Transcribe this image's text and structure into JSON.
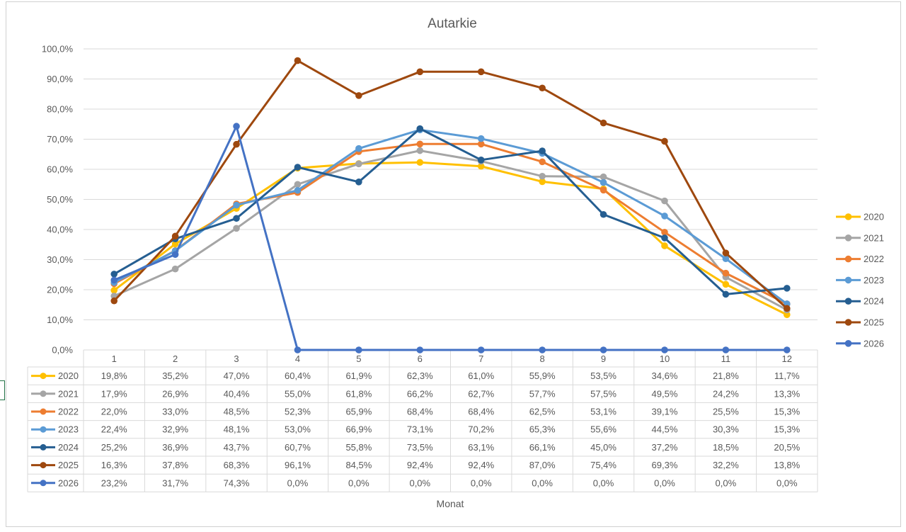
{
  "chart_data": {
    "type": "line",
    "title": "Autarkie",
    "xlabel": "Monat",
    "ylabel": "",
    "ylim": [
      0,
      100
    ],
    "y_ticks": [
      "0,0%",
      "10,0%",
      "20,0%",
      "30,0%",
      "40,0%",
      "50,0%",
      "60,0%",
      "70,0%",
      "80,0%",
      "90,0%",
      "100,0%"
    ],
    "categories": [
      "1",
      "2",
      "3",
      "4",
      "5",
      "6",
      "7",
      "8",
      "9",
      "10",
      "11",
      "12"
    ],
    "grid": true,
    "legend_position": "right",
    "data_table": true,
    "series": [
      {
        "name": "2020",
        "color": "#FFC000",
        "values": [
          19.8,
          35.2,
          47.0,
          60.4,
          61.9,
          62.3,
          61.0,
          55.9,
          53.5,
          34.6,
          21.8,
          11.7
        ],
        "labels": [
          "19,8%",
          "35,2%",
          "47,0%",
          "60,4%",
          "61,9%",
          "62,3%",
          "61,0%",
          "55,9%",
          "53,5%",
          "34,6%",
          "21,8%",
          "11,7%"
        ]
      },
      {
        "name": "2021",
        "color": "#A5A5A5",
        "values": [
          17.9,
          26.9,
          40.4,
          55.0,
          61.8,
          66.2,
          62.7,
          57.7,
          57.5,
          49.5,
          24.2,
          13.3
        ],
        "labels": [
          "17,9%",
          "26,9%",
          "40,4%",
          "55,0%",
          "61,8%",
          "66,2%",
          "62,7%",
          "57,7%",
          "57,5%",
          "49,5%",
          "24,2%",
          "13,3%"
        ]
      },
      {
        "name": "2022",
        "color": "#ED7D31",
        "values": [
          22.0,
          33.0,
          48.5,
          52.3,
          65.9,
          68.4,
          68.4,
          62.5,
          53.1,
          39.1,
          25.5,
          15.3
        ],
        "labels": [
          "22,0%",
          "33,0%",
          "48,5%",
          "52,3%",
          "65,9%",
          "68,4%",
          "68,4%",
          "62,5%",
          "53,1%",
          "39,1%",
          "25,5%",
          "15,3%"
        ]
      },
      {
        "name": "2023",
        "color": "#5B9BD5",
        "values": [
          22.4,
          32.9,
          48.1,
          53.0,
          66.9,
          73.1,
          70.2,
          65.3,
          55.6,
          44.5,
          30.3,
          15.3
        ],
        "labels": [
          "22,4%",
          "32,9%",
          "48,1%",
          "53,0%",
          "66,9%",
          "73,1%",
          "70,2%",
          "65,3%",
          "55,6%",
          "44,5%",
          "30,3%",
          "15,3%"
        ]
      },
      {
        "name": "2024",
        "color": "#255E91",
        "values": [
          25.2,
          36.9,
          43.7,
          60.7,
          55.8,
          73.5,
          63.1,
          66.1,
          45.0,
          37.2,
          18.5,
          20.5
        ],
        "labels": [
          "25,2%",
          "36,9%",
          "43,7%",
          "60,7%",
          "55,8%",
          "73,5%",
          "63,1%",
          "66,1%",
          "45,0%",
          "37,2%",
          "18,5%",
          "20,5%"
        ]
      },
      {
        "name": "2025",
        "color": "#9E480E",
        "values": [
          16.3,
          37.8,
          68.3,
          96.1,
          84.5,
          92.4,
          92.4,
          87.0,
          75.4,
          69.3,
          32.2,
          13.8
        ],
        "labels": [
          "16,3%",
          "37,8%",
          "68,3%",
          "96,1%",
          "84,5%",
          "92,4%",
          "92,4%",
          "87,0%",
          "75,4%",
          "69,3%",
          "32,2%",
          "13,8%"
        ]
      },
      {
        "name": "2026",
        "color": "#4472C4",
        "values": [
          23.2,
          31.7,
          74.3,
          0.0,
          0.0,
          0.0,
          0.0,
          0.0,
          0.0,
          0.0,
          0.0,
          0.0
        ],
        "labels": [
          "23,2%",
          "31,7%",
          "74,3%",
          "0,0%",
          "0,0%",
          "0,0%",
          "0,0%",
          "0,0%",
          "0,0%",
          "0,0%",
          "0,0%",
          "0,0%"
        ]
      }
    ]
  }
}
